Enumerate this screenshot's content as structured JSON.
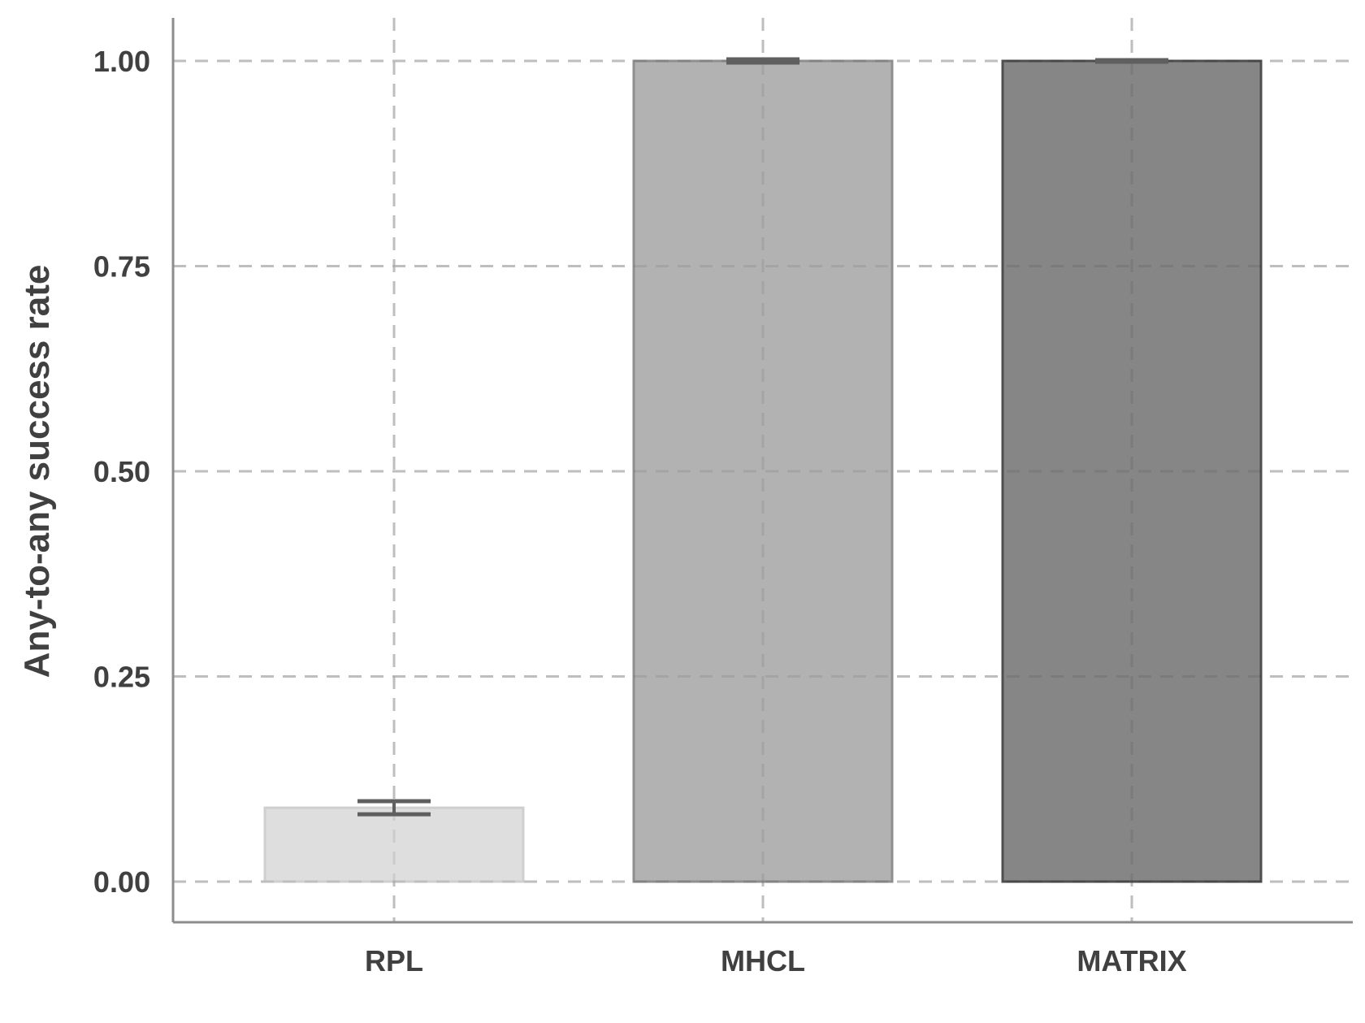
{
  "chart_data": {
    "type": "bar",
    "categories": [
      "RPL",
      "MHCL",
      "MATRIX"
    ],
    "values": [
      0.09,
      1.0,
      1.0
    ],
    "errors": [
      0.008,
      0.002,
      0.001
    ],
    "colors": [
      "#dedede",
      "#b2b2b2",
      "#868686"
    ],
    "edge_colors": [
      "#cfcfcf",
      "#8f8f8f",
      "#4f4f4f"
    ],
    "error_color": "#5f5f5f",
    "ylabel": "Any-to-any success rate",
    "xlabel": "",
    "title": "",
    "ylim": [
      -0.05,
      1.05
    ],
    "yticks": [
      0.0,
      0.25,
      0.5,
      0.75,
      1.0
    ],
    "ytick_labels": [
      "0.00",
      "0.25",
      "0.50",
      "0.75",
      "1.00"
    ],
    "grid": true
  }
}
